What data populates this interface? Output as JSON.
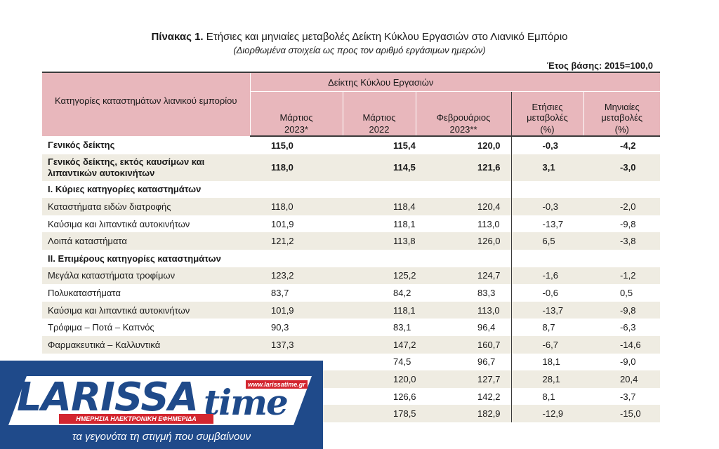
{
  "header": {
    "title_bold": "Πίνακας 1.",
    "title_rest": " Ετήσιες και μηνιαίες μεταβολές Δείκτη Κύκλου Εργασιών στο Λιανικό Εμπόριο",
    "subtitle": "(Διορθωμένα στοιχεία ως προς τον αριθμό εργάσιμων ημερών)",
    "base_year": "Έτος βάσης: 2015=100,0"
  },
  "table": {
    "category_header": "Κατηγορίες καταστημάτων λιανικού εμπορίου",
    "group_header": "Δείκτης Κύκλου Εργασιών",
    "columns": [
      {
        "top": "Μάρτιος",
        "bottom": "2023*"
      },
      {
        "top": "Μάρτιος",
        "bottom": "2022"
      },
      {
        "top": "Φεβρουάριος",
        "bottom": "2023**"
      },
      {
        "top": "Ετήσιες μεταβολές",
        "bottom": "(%)"
      },
      {
        "top": "Μηνιαίες μεταβολές",
        "bottom": "(%)"
      }
    ],
    "rows": [
      {
        "label": "Γενικός δείκτης",
        "v": [
          "115,0",
          "115,4",
          "120,0",
          "-0,3",
          "-4,2"
        ]
      },
      {
        "label": "Γενικός δείκτης, εκτός καυσίμων και λιπαντικών αυτοκινήτων",
        "v": [
          "118,0",
          "114,5",
          "121,6",
          "3,1",
          "-3,0"
        ]
      },
      {
        "label": "I. Κύριες κατηγορίες καταστημάτων",
        "v": [
          "",
          "",
          "",
          "",
          ""
        ]
      },
      {
        "label": "Καταστήματα ειδών διατροφής",
        "v": [
          "118,0",
          "118,4",
          "120,4",
          "-0,3",
          "-2,0"
        ]
      },
      {
        "label": "Καύσιμα και λιπαντικά αυτοκινήτων",
        "v": [
          "101,9",
          "118,1",
          "113,0",
          "-13,7",
          "-9,8"
        ]
      },
      {
        "label": "Λοιπά καταστήματα",
        "v": [
          "121,2",
          "113,8",
          "126,0",
          "6,5",
          "-3,8"
        ]
      },
      {
        "label": "II. Επιμέρους κατηγορίες καταστημάτων",
        "v": [
          "",
          "",
          "",
          "",
          ""
        ]
      },
      {
        "label": "Μεγάλα καταστήματα τροφίμων",
        "v": [
          "123,2",
          "125,2",
          "124,7",
          "-1,6",
          "-1,2"
        ]
      },
      {
        "label": "Πολυκαταστήματα",
        "v": [
          "83,7",
          "84,2",
          "83,3",
          "-0,6",
          "0,5"
        ]
      },
      {
        "label": "Καύσιμα και λιπαντικά αυτοκινήτων",
        "v": [
          "101,9",
          "118,1",
          "113,0",
          "-13,7",
          "-9,8"
        ]
      },
      {
        "label": "Τρόφιμα – Ποτά – Καπνός",
        "v": [
          "90,3",
          "83,1",
          "96,4",
          "8,7",
          "-6,3"
        ]
      },
      {
        "label": "Φαρμακευτικά – Καλλυντικά",
        "v": [
          "137,3",
          "147,2",
          "160,7",
          "-6,7",
          "-14,6"
        ]
      },
      {
        "label": "",
        "v": [
          "",
          "74,5",
          "96,7",
          "18,1",
          "-9,0"
        ]
      },
      {
        "label": "",
        "v": [
          "",
          "120,0",
          "127,7",
          "28,1",
          "20,4"
        ]
      },
      {
        "label": "",
        "v": [
          "",
          "126,6",
          "142,2",
          "8,1",
          "-3,7"
        ]
      },
      {
        "label": "",
        "v": [
          "",
          "178,5",
          "182,9",
          "-12,9",
          "-15,0"
        ]
      }
    ]
  },
  "logo": {
    "word": "LARISSA",
    "word2": "time",
    "url": "www.larissatime.gr",
    "band": "ΗΜΕΡΗΣΙΑ ΗΛΕΚΤΡΟΝΙΚΗ ΕΦΗΜΕΡΙΔΑ",
    "slogan": "τα γεγονότα τη στιγμή που συμβαίνουν"
  }
}
